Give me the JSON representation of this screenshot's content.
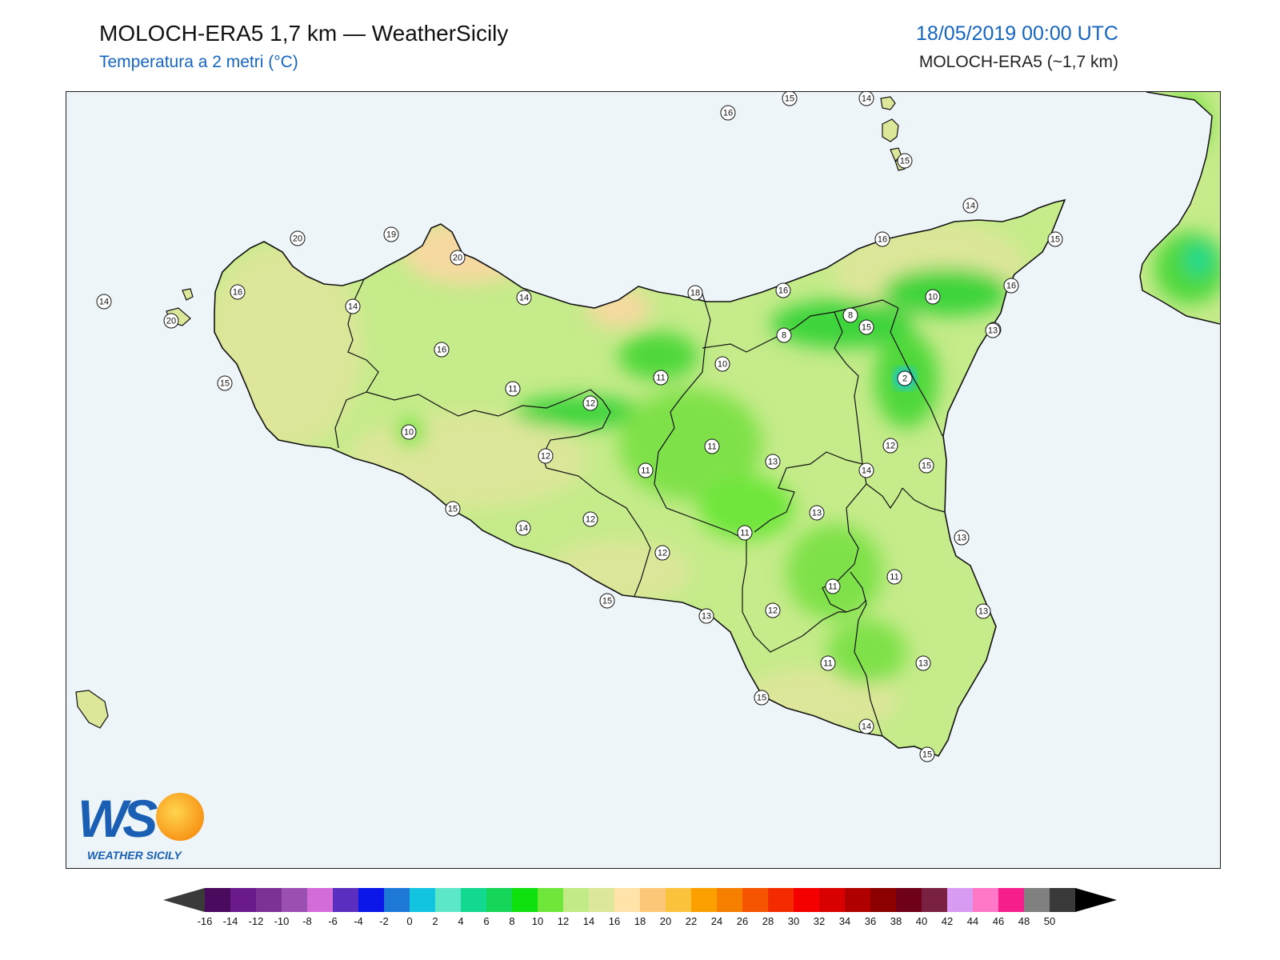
{
  "header": {
    "title": "MOLOCH-ERA5 1,7 km — WeatherSicily",
    "subtitle": "Temperatura a 2 metri (°C)",
    "datetime": "18/05/2019 00:00 UTC",
    "model": "MOLOCH-ERA5 (~1,7 km)"
  },
  "logo": {
    "letters": "WS",
    "text": "WEATHER SICILY"
  },
  "colors": {
    "sea": "#edf5f9",
    "land_warm": "#dce79a",
    "land_mild": "#c5eb8a",
    "land_cool": "#7fe14a",
    "land_cold": "#3dd43a",
    "land_hot": "#f6d9a0",
    "border": "#111111"
  },
  "stations": [
    {
      "value": "16"
    },
    {
      "value": "15"
    },
    {
      "value": "14"
    },
    {
      "value": "15"
    },
    {
      "value": "14"
    },
    {
      "value": "19"
    },
    {
      "value": "20"
    },
    {
      "value": "20"
    },
    {
      "value": "16"
    },
    {
      "value": "15"
    },
    {
      "value": "16"
    },
    {
      "value": "14"
    },
    {
      "value": "14"
    },
    {
      "value": "20"
    },
    {
      "value": "18"
    },
    {
      "value": "16"
    },
    {
      "value": "15"
    },
    {
      "value": "15"
    },
    {
      "value": "16"
    },
    {
      "value": "10"
    },
    {
      "value": "8"
    },
    {
      "value": "8"
    },
    {
      "value": "10"
    },
    {
      "value": "13"
    },
    {
      "value": "14"
    },
    {
      "value": "16"
    },
    {
      "value": "15"
    },
    {
      "value": "11"
    },
    {
      "value": "12"
    },
    {
      "value": "11"
    },
    {
      "value": "10"
    },
    {
      "value": "2"
    },
    {
      "value": "12"
    },
    {
      "value": "12"
    },
    {
      "value": "11"
    },
    {
      "value": "11"
    },
    {
      "value": "13"
    },
    {
      "value": "14"
    },
    {
      "value": "15"
    },
    {
      "value": "15"
    },
    {
      "value": "14"
    },
    {
      "value": "12"
    },
    {
      "value": "13"
    },
    {
      "value": "11"
    },
    {
      "value": "13"
    },
    {
      "value": "12"
    },
    {
      "value": "11"
    },
    {
      "value": "11"
    },
    {
      "value": "15"
    },
    {
      "value": "13"
    },
    {
      "value": "12"
    },
    {
      "value": "13"
    },
    {
      "value": "11"
    },
    {
      "value": "13"
    },
    {
      "value": "15"
    },
    {
      "value": "14"
    },
    {
      "value": "15"
    }
  ],
  "colorbar": {
    "ticks": [
      "-16",
      "-14",
      "-12",
      "-10",
      "-8",
      "-6",
      "-4",
      "-2",
      "0",
      "2",
      "4",
      "6",
      "8",
      "10",
      "12",
      "14",
      "16",
      "18",
      "20",
      "22",
      "24",
      "26",
      "28",
      "30",
      "32",
      "34",
      "36",
      "38",
      "40",
      "42",
      "44",
      "46",
      "48",
      "50"
    ],
    "colors": [
      "#4a0a5e",
      "#6a1a8a",
      "#7b3294",
      "#9b4fb0",
      "#d36bd8",
      "#5a2fc0",
      "#0a17e8",
      "#1e78d6",
      "#12c4e0",
      "#5ce8c8",
      "#12d98f",
      "#16d65a",
      "#0ee10e",
      "#6ee63a",
      "#c2eb88",
      "#dde69a",
      "#ffe3a8",
      "#fcc877",
      "#fbc23c",
      "#fba000",
      "#f77f00",
      "#f55400",
      "#f42a00",
      "#f40000",
      "#d80000",
      "#b00000",
      "#8c0000",
      "#6e0018",
      "#7a2040",
      "#d89af2",
      "#ff78c8",
      "#f51e8a",
      "#808080",
      "#3a3a3a"
    ]
  }
}
